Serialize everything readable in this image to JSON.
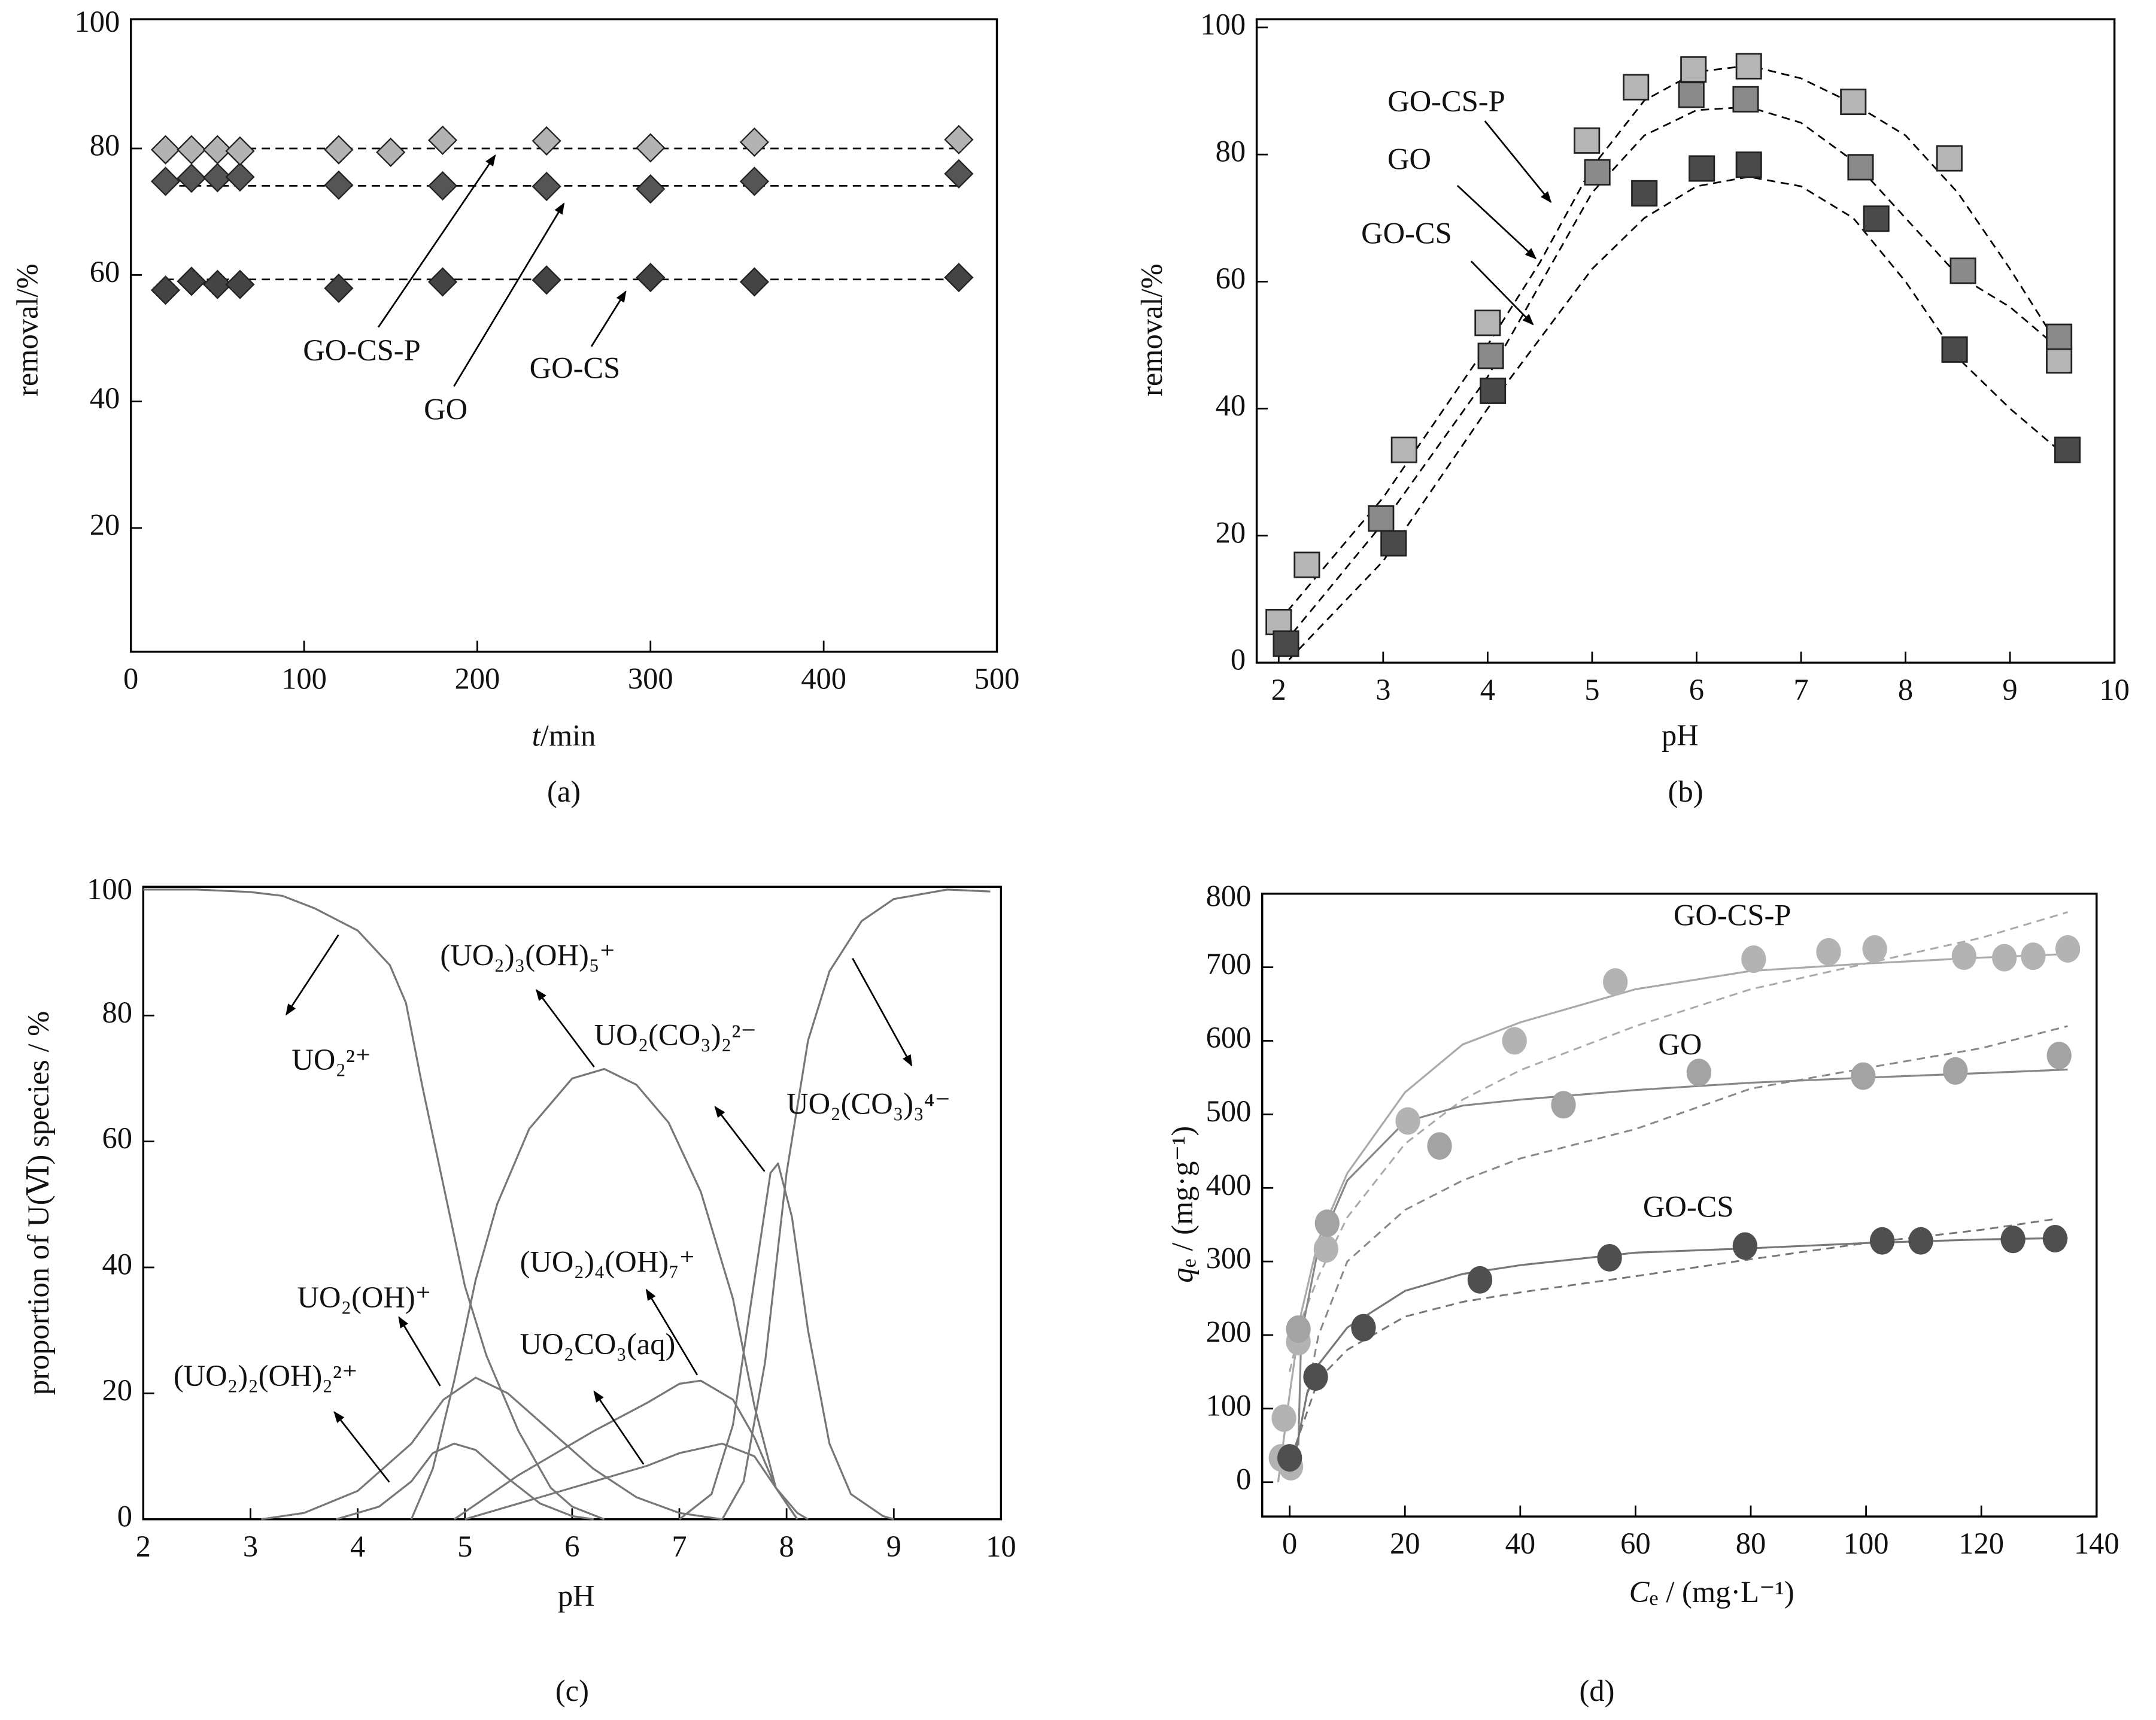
{
  "chart_data": [
    {
      "panel_label": "(a)",
      "type": "scatter",
      "xlabel_italic": "t",
      "xlabel_rest": "/min",
      "ylabel": "removal/%",
      "xlim": [
        0,
        500
      ],
      "ylim": [
        0,
        100
      ],
      "xticks": [
        0,
        100,
        200,
        300,
        400,
        500
      ],
      "yticks": [
        20,
        40,
        60,
        80,
        100
      ],
      "marker": "diamond",
      "series": [
        {
          "name": "GO-CS-P",
          "color": "#b3b3b3",
          "x": [
            20,
            35,
            50,
            63,
            120,
            150,
            180,
            240,
            300,
            360,
            478
          ],
          "y": [
            79.8,
            79.8,
            79.8,
            79.6,
            79.8,
            79.4,
            81.3,
            81.2,
            80.1,
            81.0,
            81.4
          ],
          "fit_level": 80
        },
        {
          "name": "GO",
          "color": "#555555",
          "x": [
            20,
            35,
            50,
            63,
            120,
            180,
            240,
            300,
            360,
            478
          ],
          "y": [
            74.8,
            75.3,
            75.4,
            75.5,
            74.2,
            74.1,
            74.0,
            73.6,
            74.8,
            76.0
          ],
          "fit_level": 74.1
        },
        {
          "name": "GO-CS",
          "color": "#444444",
          "x": [
            20,
            35,
            50,
            63,
            120,
            180,
            240,
            300,
            360,
            478
          ],
          "y": [
            57.6,
            59.0,
            58.5,
            58.5,
            57.9,
            58.9,
            59.2,
            59.6,
            58.9,
            59.6
          ],
          "fit_level": 59.3
        }
      ],
      "annotations": [
        "GO-CS-P",
        "GO",
        "GO-CS"
      ]
    },
    {
      "panel_label": "(b)",
      "type": "scatter",
      "xlabel": "pH",
      "ylabel": "removal/%",
      "xlim": [
        2,
        10
      ],
      "ylim": [
        0,
        100
      ],
      "xticks": [
        2,
        3,
        4,
        5,
        6,
        7,
        8,
        9,
        10
      ],
      "yticks": [
        0,
        20,
        40,
        60,
        80,
        100
      ],
      "marker": "square",
      "series": [
        {
          "name": "GO-CS-P",
          "color": "#b5b5b5",
          "x": [
            2.0,
            2.27,
            3.2,
            4.0,
            4.95,
            5.42,
            5.97,
            6.5,
            7.5,
            8.42,
            9.47
          ],
          "y": [
            6.4,
            15.4,
            33.5,
            53.5,
            82.2,
            90.6,
            93.4,
            93.9,
            88.3,
            79.4,
            47.6
          ],
          "fit": {
            "x": [
              2.0,
              3,
              4,
              4.5,
              5,
              5.5,
              6,
              6.5,
              7,
              7.5,
              8,
              8.5,
              9,
              9.5
            ],
            "y": [
              6.5,
              26,
              50,
              63,
              78,
              88.5,
              93,
              94,
              92,
              88,
              83,
              74,
              62,
              49
            ]
          }
        },
        {
          "name": "GO",
          "color": "#8a8a8a",
          "x": [
            2.98,
            4.03,
            5.05,
            5.95,
            6.47,
            7.57,
            8.55,
            9.47
          ],
          "y": [
            22.7,
            48.3,
            77.2,
            89.4,
            88.7,
            78.0,
            61.7,
            51.3
          ],
          "fit": {
            "x": [
              2.05,
              3,
              4,
              5,
              5.5,
              6,
              6.5,
              7,
              7.5,
              8,
              8.5,
              9,
              9.5
            ],
            "y": [
              3,
              22,
              45,
              74,
              83,
              87,
              87.5,
              85,
              79,
              70,
              61,
              56,
              49
            ]
          }
        },
        {
          "name": "GO-CS",
          "color": "#4a4a4a",
          "x": [
            2.07,
            3.1,
            4.05,
            5.5,
            6.05,
            6.5,
            7.72,
            8.47,
            9.55
          ],
          "y": [
            3.0,
            18.8,
            42.8,
            73.9,
            77.8,
            78.4,
            69.9,
            49.3,
            33.5
          ],
          "fit": {
            "x": [
              2.1,
              3,
              4,
              4.5,
              5,
              5.5,
              6,
              6.5,
              7,
              7.5,
              8,
              8.5,
              9,
              9.5
            ],
            "y": [
              0.5,
              16,
              40,
              51,
              62,
              70,
              75,
              76.5,
              75,
              70,
              60,
              48,
              40,
              33
            ]
          }
        }
      ],
      "annotations": [
        "GO-CS-P",
        "GO",
        "GO-CS"
      ]
    },
    {
      "panel_label": "(c)",
      "type": "line",
      "xlabel": "pH",
      "ylabel": "proportion of U(Ⅵ) species / %",
      "xlim": [
        2,
        10
      ],
      "ylim": [
        0,
        100
      ],
      "xticks": [
        2,
        3,
        4,
        5,
        6,
        7,
        8,
        9,
        10
      ],
      "yticks": [
        0,
        20,
        40,
        60,
        80,
        100
      ],
      "line_color": "#777777",
      "series": [
        {
          "name": "UO₂²⁺",
          "x": [
            2,
            2.5,
            3,
            3.3,
            3.6,
            4,
            4.3,
            4.45,
            4.6,
            4.8,
            5,
            5.2,
            5.5,
            5.8,
            6,
            6.3
          ],
          "y": [
            100,
            100,
            99.6,
            99,
            97,
            93.5,
            88,
            82,
            69,
            53,
            37,
            26,
            14,
            5,
            2,
            0
          ]
        },
        {
          "name": "(UO₂)₃(OH)₅⁺",
          "x": [
            4.5,
            4.7,
            4.9,
            5.1,
            5.3,
            5.6,
            6.0,
            6.3,
            6.6,
            6.9,
            7.2,
            7.5,
            7.7,
            7.9,
            8.1
          ],
          "y": [
            0,
            8,
            22,
            38,
            50,
            62,
            70,
            71.5,
            69,
            63,
            52,
            35,
            18,
            5,
            0
          ]
        },
        {
          "name": "UO₂(OH)⁺",
          "x": [
            3.1,
            3.5,
            4,
            4.5,
            4.8,
            5.1,
            5.4,
            5.8,
            6.2,
            6.6,
            7,
            7.4
          ],
          "y": [
            0,
            1,
            4.5,
            12,
            19,
            22.5,
            20,
            14,
            8,
            3.5,
            1,
            0
          ]
        },
        {
          "name": "(UO₂)₂(OH)₂²⁺",
          "x": [
            3.8,
            4.2,
            4.5,
            4.7,
            4.9,
            5.1,
            5.4,
            5.7,
            6,
            6.2
          ],
          "y": [
            0,
            2,
            6,
            10.5,
            12,
            11,
            6.5,
            2.5,
            0.5,
            0
          ]
        },
        {
          "name": "UO₂CO₃(aq)",
          "x": [
            4.9,
            5.5,
            6.2,
            6.7,
            7.0,
            7.2,
            7.5,
            7.7,
            7.9,
            8.1
          ],
          "y": [
            0,
            7,
            14,
            18.5,
            21.5,
            22,
            19,
            13,
            5,
            0
          ]
        },
        {
          "name": "(UO₂)₄(OH)₇⁺",
          "x": [
            5.0,
            6,
            6.7,
            7.0,
            7.4,
            7.7,
            7.9,
            8.1,
            8.2
          ],
          "y": [
            0,
            5,
            8.5,
            10.5,
            12,
            10,
            5,
            1,
            0
          ]
        },
        {
          "name": "UO₂(CO₃)₂²⁻",
          "x": [
            7.0,
            7.3,
            7.5,
            7.7,
            7.85,
            7.92,
            8.05,
            8.2,
            8.4,
            8.6,
            8.9,
            9.0
          ],
          "y": [
            0,
            4,
            15,
            38,
            55,
            56.5,
            48,
            30,
            12,
            4,
            0.5,
            0
          ]
        },
        {
          "name": "UO₂(CO₃)₃⁴⁻",
          "x": [
            7.4,
            7.6,
            7.8,
            8.0,
            8.2,
            8.4,
            8.7,
            9.0,
            9.5,
            9.9
          ],
          "y": [
            0,
            6,
            25,
            55,
            76,
            87,
            95,
            98.5,
            100,
            99.7
          ]
        }
      ]
    },
    {
      "panel_label": "(d)",
      "type": "scatter",
      "xlabel_italic": "C",
      "xlabel_sub": "e",
      "xlabel_rest": " / (mg·L⁻¹)",
      "ylabel_italic": "q",
      "ylabel_sub": "e",
      "ylabel_rest": " / (mg·g⁻¹)",
      "xlim": [
        -5,
        140
      ],
      "ylim": [
        -47,
        800
      ],
      "xticks": [
        0,
        20,
        40,
        60,
        80,
        100,
        120,
        140
      ],
      "yticks": [
        0,
        100,
        200,
        300,
        400,
        500,
        600,
        700,
        800
      ],
      "marker": "circle",
      "series": [
        {
          "name": "GO-CS-P",
          "color": "#b3b3b3",
          "fit_color": "#aaaaaa",
          "x": [
            -1,
            -1.5,
            0.2,
            1.5,
            6.3,
            20.5,
            39,
            56.5,
            80.5,
            93.5,
            101.5,
            117,
            124,
            129,
            135
          ],
          "y": [
            87,
            33,
            21,
            191,
            317,
            491,
            600,
            680,
            711,
            721,
            725,
            715,
            713,
            715,
            725
          ],
          "fit_solid": {
            "x": [
              -2,
              0,
              2,
              5,
              10,
              20,
              30,
              40,
              60,
              80,
              100,
              120,
              135
            ],
            "y": [
              0,
              120,
              230,
              330,
              420,
              530,
              595,
              625,
              670,
              695,
              705,
              713,
              718
            ]
          },
          "fit_dashed": {
            "x": [
              0,
              2,
              5,
              10,
              20,
              30,
              40,
              60,
              80,
              100,
              120,
              135
            ],
            "y": [
              150,
              220,
              280,
              360,
              460,
              520,
              560,
              620,
              670,
              705,
              740,
              775
            ]
          }
        },
        {
          "name": "GO",
          "color": "#a3a3a3",
          "fit_color": "#888888",
          "x": [
            1.5,
            6.5,
            26,
            47.5,
            71,
            99.5,
            115.5,
            133.5
          ],
          "y": [
            208,
            352,
            457,
            513,
            557,
            552,
            559,
            580
          ],
          "fit_solid": {
            "x": [
              1.5,
              2,
              5,
              10,
              20,
              30,
              40,
              60,
              80,
              100,
              120,
              135
            ],
            "y": [
              50,
              200,
              320,
              410,
              490,
              512,
              520,
              533,
              543,
              550,
              556,
              561
            ]
          },
          "fit_dashed": {
            "x": [
              1.5,
              5,
              10,
              20,
              30,
              40,
              60,
              80,
              100,
              120,
              135
            ],
            "y": [
              60,
              200,
              300,
              370,
              410,
              440,
              480,
              535,
              563,
              590,
              620
            ]
          }
        },
        {
          "name": "GO-CS",
          "color": "#4f4f4f",
          "fit_color": "#777777",
          "x": [
            0,
            4.5,
            12.8,
            33,
            55.5,
            79,
            102.8,
            109.5,
            125.5,
            132.8
          ],
          "y": [
            33,
            143,
            210,
            275,
            305,
            321,
            328,
            328,
            330,
            331
          ],
          "fit_solid": {
            "x": [
              1,
              3,
              5,
              10,
              20,
              30,
              40,
              60,
              80,
              100,
              120,
              135
            ],
            "y": [
              40,
              120,
              160,
              210,
              260,
              283,
              295,
              312,
              318,
              325,
              330,
              332
            ]
          },
          "fit_dashed": {
            "x": [
              1,
              5,
              10,
              20,
              30,
              40,
              60,
              80,
              100,
              120,
              133
            ],
            "y": [
              50,
              140,
              180,
              225,
              245,
              258,
              280,
              303,
              325,
              343,
              358
            ]
          }
        }
      ],
      "annotations": [
        "GO-CS-P",
        "GO",
        "GO-CS"
      ]
    }
  ]
}
